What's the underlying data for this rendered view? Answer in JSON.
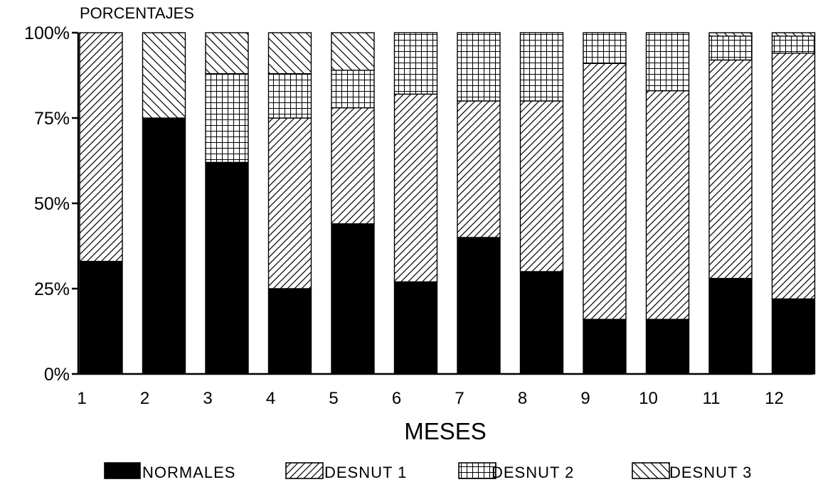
{
  "chart_data": {
    "type": "bar",
    "stacked": true,
    "title": "",
    "ylabel": "PORCENTAJES",
    "xlabel": "MESES",
    "categories": [
      "1",
      "2",
      "3",
      "4",
      "5",
      "6",
      "7",
      "8",
      "9",
      "10",
      "11",
      "12"
    ],
    "ylim": [
      0,
      100
    ],
    "yticks": [
      0,
      25,
      50,
      75,
      100
    ],
    "ytick_labels": [
      "0%",
      "25%",
      "50%",
      "75%",
      "100%"
    ],
    "grid": false,
    "legend_position": "bottom",
    "series": [
      {
        "name": "NORMALES",
        "pattern": "solid-black",
        "values": [
          33,
          75,
          62,
          25,
          44,
          27,
          40,
          30,
          16,
          16,
          28,
          22
        ]
      },
      {
        "name": "DESNUT 1",
        "pattern": "diagonal-hatch",
        "values": [
          67,
          0,
          0,
          50,
          34,
          55,
          40,
          50,
          75,
          67,
          64,
          72
        ]
      },
      {
        "name": "DESNUT 2",
        "pattern": "grid-hatch",
        "values": [
          0,
          0,
          26,
          13,
          11,
          18,
          20,
          20,
          9,
          17,
          7,
          5
        ]
      },
      {
        "name": "DESNUT 3",
        "pattern": "back-diagonal-hatch",
        "values": [
          0,
          25,
          12,
          12,
          11,
          0,
          0,
          0,
          0,
          0,
          1,
          1
        ]
      }
    ]
  }
}
